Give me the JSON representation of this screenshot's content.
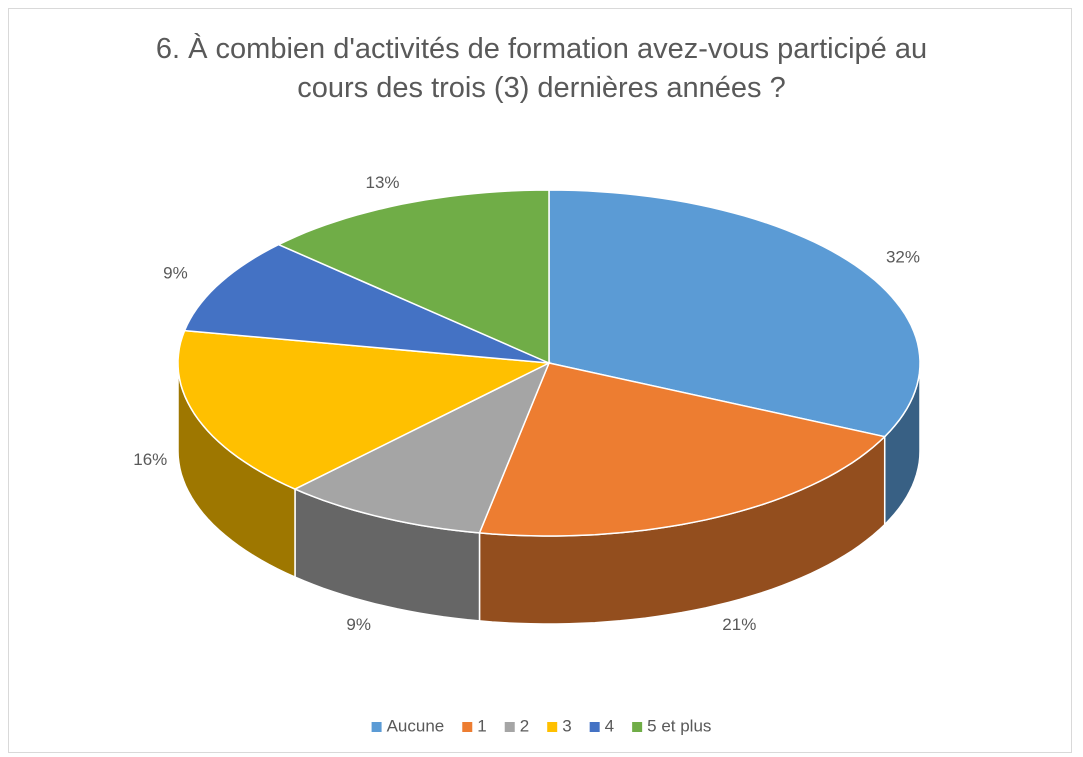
{
  "chart_data": {
    "type": "pie",
    "title": "6. À combien d'activités de formation avez-vous participé au cours des trois (3) dernières années ?",
    "categories": [
      "Aucune",
      "1",
      "2",
      "3",
      "4",
      "5 et plus"
    ],
    "values": [
      32,
      21,
      9,
      16,
      9,
      13
    ],
    "value_labels": [
      "32%",
      "21%",
      "9%",
      "16%",
      "9%",
      "13%"
    ],
    "colors": [
      "#5b9bd5",
      "#ed7d31",
      "#a5a5a5",
      "#ffc000",
      "#4472c4",
      "#70ad47"
    ],
    "legend": "bottom"
  }
}
